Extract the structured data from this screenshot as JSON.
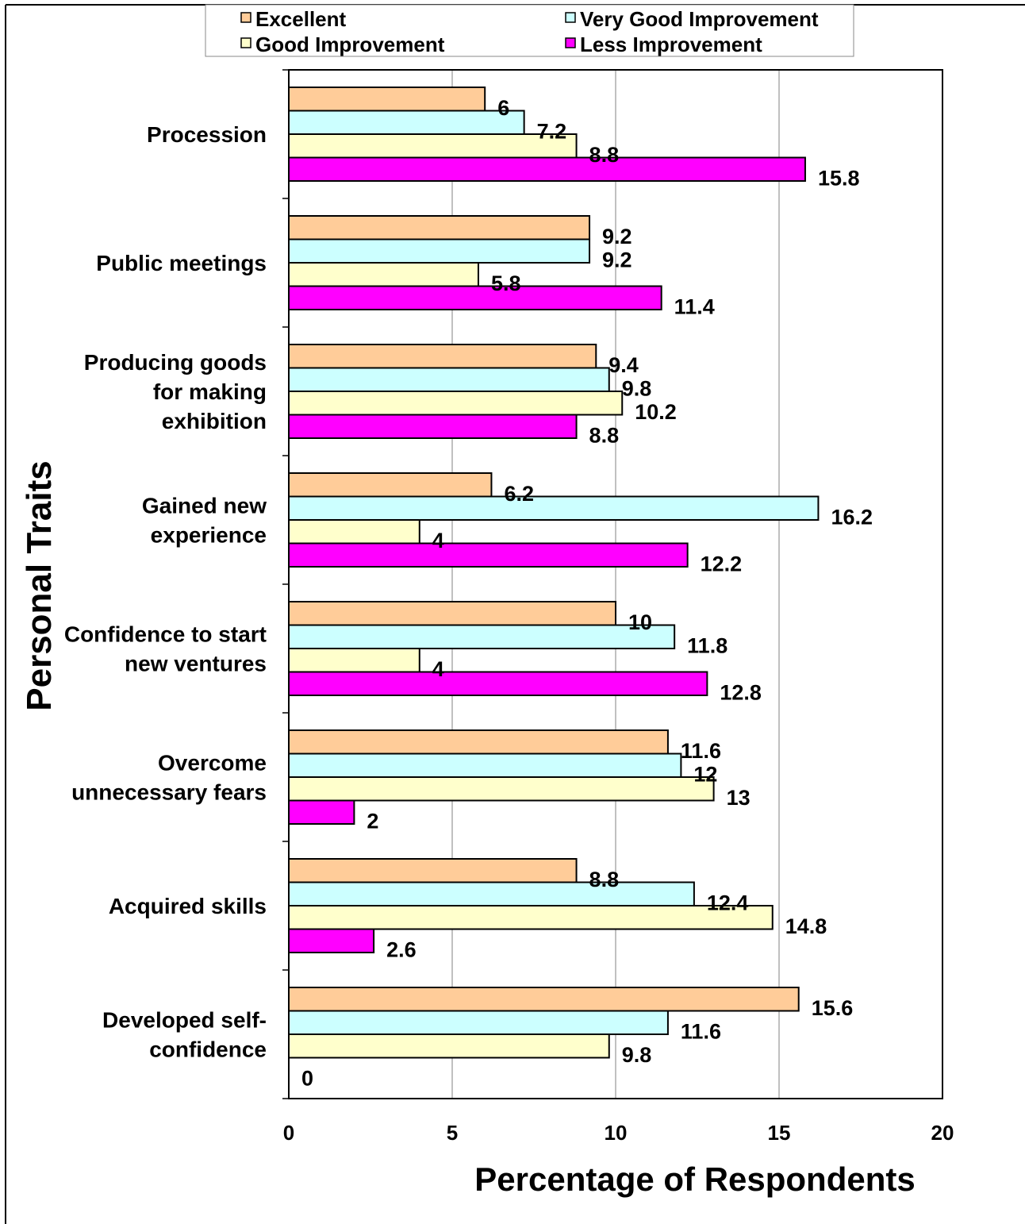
{
  "chart_data": {
    "type": "bar",
    "orientation": "horizontal",
    "title": "",
    "xlabel": "Percentage of Respondents",
    "ylabel": "Personal Traits",
    "xlim": [
      0,
      20
    ],
    "xticks": [
      "0",
      "5",
      "10",
      "15",
      "20"
    ],
    "grid": "vertical major gridlines",
    "legend_position": "top",
    "categories": [
      [
        "Procession"
      ],
      [
        "Public meetings"
      ],
      [
        "Producing goods",
        "for making",
        "exhibition"
      ],
      [
        "Gained new",
        "experience"
      ],
      [
        "Confidence to start",
        "new ventures"
      ],
      [
        "Overcome",
        "unnecessary fears"
      ],
      [
        "Acquired skills"
      ],
      [
        "Developed self-",
        "confidence"
      ]
    ],
    "series": [
      {
        "name": "Excellent",
        "color": "#FFCC99",
        "values": [
          6,
          9.2,
          9.4,
          6.2,
          10,
          11.6,
          8.8,
          15.6
        ]
      },
      {
        "name": "Very Good Improvement",
        "color": "#CCFFFF",
        "values": [
          7.2,
          9.2,
          9.8,
          16.2,
          11.8,
          12,
          12.4,
          11.6
        ]
      },
      {
        "name": "Good Improvement",
        "color": "#FFFFCC",
        "values": [
          8.8,
          5.8,
          10.2,
          4,
          4,
          13,
          14.8,
          9.8
        ]
      },
      {
        "name": "Less Improvement",
        "color": "#FF00FF",
        "values": [
          15.8,
          11.4,
          8.8,
          12.2,
          12.8,
          2,
          2.6,
          0
        ]
      }
    ],
    "data_labels": [
      [
        "6",
        "9.2",
        "9.4",
        "6.2",
        "10",
        "11.6",
        "8.8",
        "15.6"
      ],
      [
        "7.2",
        "9.2",
        "9.8",
        "16.2",
        "11.8",
        "12",
        "12.4",
        "11.6"
      ],
      [
        "8.8",
        "5.8",
        "10.2",
        "4",
        "4",
        "13",
        "14.8",
        "9.8"
      ],
      [
        "15.8",
        "11.4",
        "8.8",
        "12.2",
        "12.8",
        "2",
        "2.6",
        "0"
      ]
    ]
  }
}
